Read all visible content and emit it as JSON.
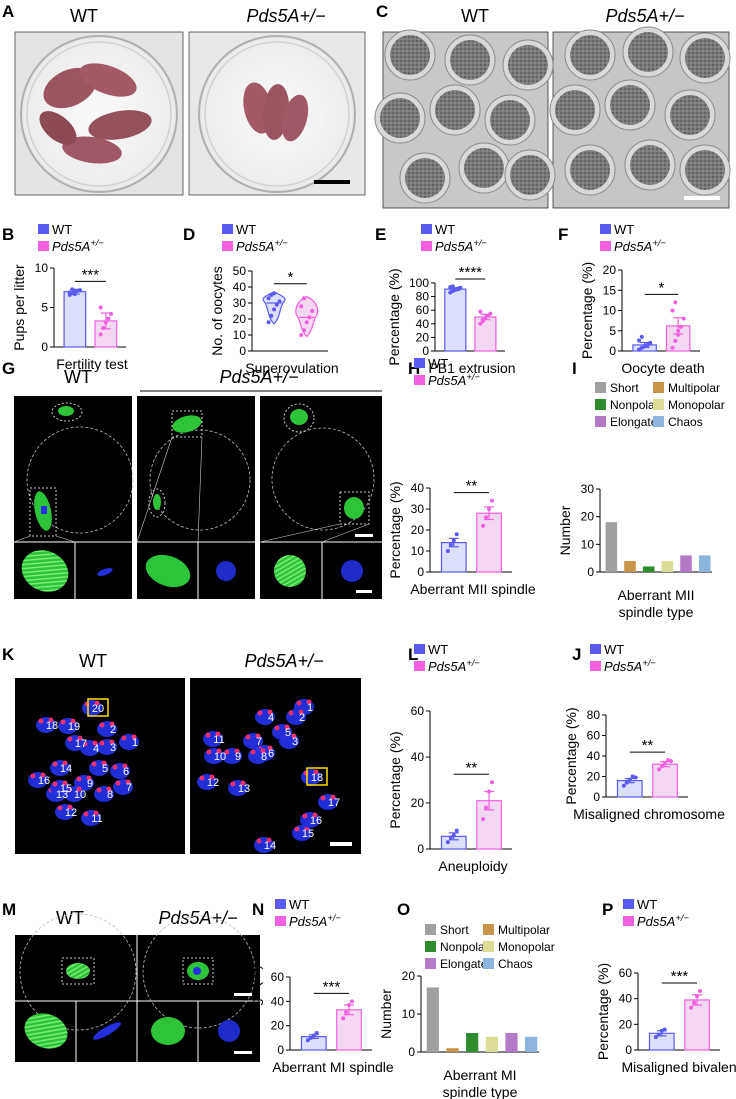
{
  "colors": {
    "wt": "#5A5AF0",
    "mut": "#F060E0",
    "wt_fill": "#DDE0FA",
    "mut_fill": "#F4D8F2",
    "micro_bg": "#000000",
    "chrom_blue": "#2430E0",
    "kinet_red": "#FF2E6E",
    "spindle_green": "#2EC43A",
    "pb_gray": "#BDBDBD"
  },
  "legend": {
    "wt": "WT",
    "mut": "Pds5A+/−"
  },
  "photo_panels": {
    "A": {
      "letter": "A",
      "left_title": "WT",
      "right_title": "Pds5A+/−"
    },
    "C": {
      "letter": "C",
      "left_title": "WT",
      "right_title": "Pds5A+/−"
    },
    "G": {
      "letter": "G",
      "left_title": "WT",
      "right_title": "Pds5A+/−"
    },
    "K": {
      "letter": "K",
      "left_title": "WT",
      "right_title": "Pds5A+/−",
      "wt_numbers": [
        "1",
        "2",
        "3",
        "4",
        "5",
        "6",
        "7",
        "8",
        "9",
        "10",
        "11",
        "12",
        "13",
        "14",
        "15",
        "16",
        "17",
        "18",
        "19",
        "20"
      ],
      "wt_boxed": "20",
      "mut_numbers": [
        "1",
        "2",
        "3",
        "4",
        "5",
        "6",
        "7",
        "8",
        "9",
        "10",
        "11",
        "12",
        "13",
        "14",
        "15",
        "16",
        "17",
        "18"
      ],
      "mut_boxed": "18"
    },
    "M": {
      "letter": "M",
      "left_title": "WT",
      "right_title": "Pds5A+/−"
    }
  },
  "chart_data": [
    {
      "id": "B",
      "type": "bar",
      "categories": [
        "WT",
        "Pds5A+/−"
      ],
      "values": [
        7.0,
        3.3
      ],
      "errors": [
        0.3,
        1.0
      ],
      "points": [
        [
          6.6,
          6.8,
          7.0,
          7.1,
          7.2,
          6.9,
          7.3,
          6.7
        ],
        [
          1.6,
          2.4,
          3.1,
          3.6,
          4.2,
          5.0
        ]
      ],
      "ylabel": "Pups per litter",
      "xlabel": "Fertility test",
      "ylim": [
        0,
        10
      ],
      "yticks": [
        0,
        5,
        10
      ],
      "sig": "***"
    },
    {
      "id": "D",
      "type": "violin",
      "categories": [
        "WT",
        "Pds5A+/−"
      ],
      "values": [
        30,
        21
      ],
      "ranges": [
        [
          17,
          37
        ],
        [
          9,
          34
        ]
      ],
      "points": [
        [
          18,
          22,
          26,
          29,
          31,
          33,
          35,
          36
        ],
        [
          10,
          13,
          18,
          21,
          25,
          28,
          33
        ]
      ],
      "ylabel": "No. of oocytes",
      "xlabel": "Superovulation",
      "ylim": [
        0,
        50
      ],
      "yticks": [
        0,
        10,
        20,
        30,
        40,
        50
      ],
      "sig": "*"
    },
    {
      "id": "E",
      "type": "bar",
      "categories": [
        "WT",
        "Pds5A+/−"
      ],
      "values": [
        91,
        50
      ],
      "errors": [
        2,
        4
      ],
      "points": [
        [
          86,
          88,
          90,
          92,
          93,
          94,
          95,
          90
        ],
        [
          40,
          44,
          48,
          52,
          55,
          58,
          46
        ]
      ],
      "ylabel": "Percentage (%)",
      "xlabel": "PB1 extrusion",
      "ylim": [
        0,
        100
      ],
      "yticks": [
        0,
        20,
        40,
        60,
        80,
        100
      ],
      "sig": "****"
    },
    {
      "id": "F",
      "type": "bar",
      "categories": [
        "WT",
        "Pds5A+/−"
      ],
      "values": [
        1.5,
        6.2
      ],
      "errors": [
        0.6,
        2.0
      ],
      "points": [
        [
          0.3,
          0.8,
          1.1,
          1.5,
          2.0,
          2.6,
          3.5,
          1.2
        ],
        [
          0.8,
          2.5,
          4.0,
          6.0,
          8.0,
          10.0,
          12.0,
          5.0
        ]
      ],
      "ylabel": "Percentage (%)",
      "xlabel": "Oocyte death",
      "ylim": [
        0,
        20
      ],
      "yticks": [
        0,
        5,
        10,
        15,
        20
      ],
      "sig": "*"
    },
    {
      "id": "H",
      "type": "bar",
      "categories": [
        "WT",
        "Pds5A+/−"
      ],
      "values": [
        14,
        28
      ],
      "errors": [
        2,
        3
      ],
      "points": [
        [
          10,
          13,
          15,
          18
        ],
        [
          22,
          26,
          30,
          34
        ]
      ],
      "ylabel": "Percentage (%)",
      "xlabel": "Aberrant MII spindle",
      "ylim": [
        0,
        40
      ],
      "yticks": [
        0,
        10,
        20,
        30,
        40
      ],
      "sig": "**"
    },
    {
      "id": "I",
      "type": "bar",
      "categories": [
        "Short",
        "Multipolar",
        "Nonpolar",
        "Monopolar",
        "Elongated",
        "Chaos"
      ],
      "values": [
        18,
        4,
        2,
        4,
        6,
        6
      ],
      "bar_colors": [
        "#A0A0A0",
        "#C8944A",
        "#2E8B2E",
        "#DCDC96",
        "#B47AC8",
        "#8CB4DC"
      ],
      "ylabel": "Number",
      "xlabel": [
        "Aberrant MII",
        "spindle type"
      ],
      "ylim": [
        0,
        30
      ],
      "yticks": [
        0,
        10,
        20,
        30
      ]
    },
    {
      "id": "L",
      "type": "bar",
      "categories": [
        "WT",
        "Pds5A+/−"
      ],
      "values": [
        5.5,
        21
      ],
      "errors": [
        1.5,
        4
      ],
      "points": [
        [
          3,
          5,
          6,
          8
        ],
        [
          13,
          18,
          25,
          29
        ]
      ],
      "ylabel": "Percentage (%)",
      "xlabel": "Aneuploidy",
      "ylim": [
        0,
        60
      ],
      "yticks": [
        0,
        20,
        40,
        60
      ],
      "sig": "**"
    },
    {
      "id": "J",
      "type": "bar",
      "categories": [
        "WT",
        "Pds5A+/−"
      ],
      "values": [
        16,
        32
      ],
      "errors": [
        2,
        2.5
      ],
      "points": [
        [
          11,
          14,
          17,
          20,
          19
        ],
        [
          27,
          30,
          33,
          36,
          35
        ]
      ],
      "ylabel": "Percentage (%)",
      "xlabel": "Misaligned chromosome",
      "ylim": [
        0,
        80
      ],
      "yticks": [
        0,
        20,
        40,
        60,
        80
      ],
      "sig": "**"
    },
    {
      "id": "N",
      "type": "bar",
      "categories": [
        "WT",
        "Pds5A+/−"
      ],
      "values": [
        11,
        33
      ],
      "errors": [
        1.5,
        4
      ],
      "points": [
        [
          8,
          10,
          12,
          14
        ],
        [
          26,
          31,
          37,
          40
        ]
      ],
      "ylabel": "Percentage (%)",
      "xlabel": "Aberrant MI spindle",
      "ylim": [
        0,
        60
      ],
      "yticks": [
        0,
        20,
        40,
        60
      ],
      "sig": "***"
    },
    {
      "id": "O",
      "type": "bar",
      "categories": [
        "Short",
        "Multipolar",
        "Nonpolar",
        "Monopolar",
        "Elongated",
        "Chaos"
      ],
      "values": [
        17,
        1,
        5,
        4,
        5,
        4
      ],
      "bar_colors": [
        "#A0A0A0",
        "#C8944A",
        "#2E8B2E",
        "#DCDC96",
        "#B47AC8",
        "#8CB4DC"
      ],
      "ylabel": "Number",
      "xlabel": [
        "Aberrant MI",
        "spindle type"
      ],
      "ylim": [
        0,
        20
      ],
      "yticks": [
        0,
        10,
        20
      ]
    },
    {
      "id": "P",
      "type": "bar",
      "categories": [
        "WT",
        "Pds5A+/−"
      ],
      "values": [
        13,
        39
      ],
      "errors": [
        2,
        4
      ],
      "points": [
        [
          10,
          12,
          15,
          16
        ],
        [
          33,
          37,
          42,
          46
        ]
      ],
      "ylabel": "Percentage (%)",
      "xlabel": "Misaligned bivalent",
      "ylim": [
        0,
        60
      ],
      "yticks": [
        0,
        20,
        40,
        60
      ],
      "sig": "***"
    }
  ]
}
